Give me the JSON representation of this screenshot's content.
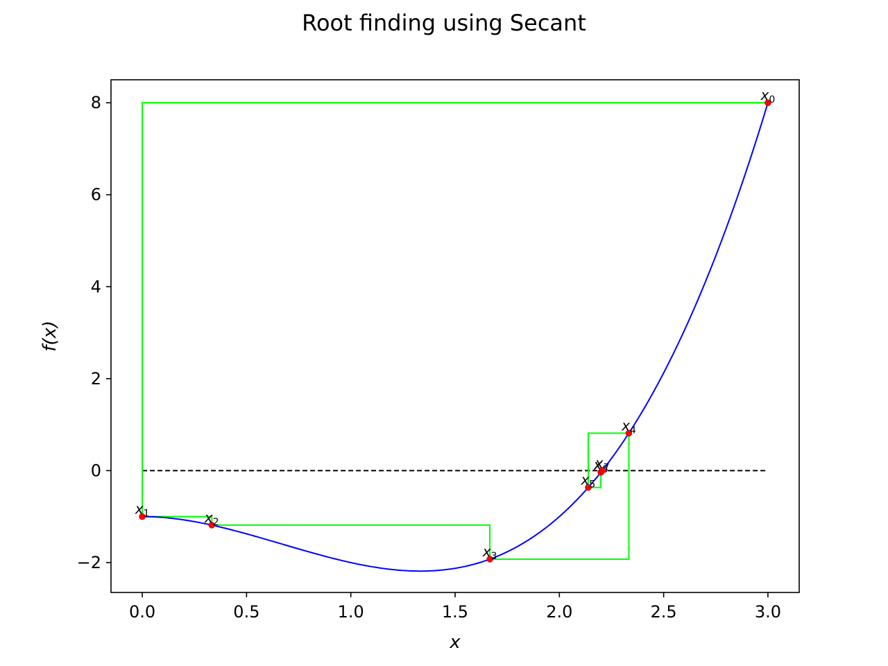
{
  "chart_data": {
    "type": "line",
    "title": "Root finding using Secant",
    "xlabel": "x",
    "ylabel": "f(x)",
    "xlim": [
      -0.15,
      3.15
    ],
    "ylim": [
      -2.65,
      8.5
    ],
    "xticks": [
      0.0,
      0.5,
      1.0,
      1.5,
      2.0,
      2.5,
      3.0
    ],
    "xtick_labels": [
      "0.0",
      "0.5",
      "1.0",
      "1.5",
      "2.0",
      "2.5",
      "3.0"
    ],
    "yticks": [
      -2,
      0,
      2,
      4,
      6,
      8
    ],
    "ytick_labels": [
      "−2",
      "0",
      "2",
      "4",
      "6",
      "8"
    ],
    "grid": false,
    "colors": {
      "curve": "#0000ff",
      "steps": "#00ff00",
      "points": "#ff0000",
      "zero_line": "#000000"
    },
    "curve": {
      "function": "f(x) = x^3 - 2x^2 - 1",
      "x_range": [
        0,
        3
      ]
    },
    "zero_line": {
      "x_range": [
        0,
        3
      ],
      "y": 0,
      "style": "dashed"
    },
    "iterates": [
      {
        "label": "x",
        "sub": "0",
        "x": 3.0,
        "y": 8.0
      },
      {
        "label": "x",
        "sub": "1",
        "x": 0.0,
        "y": -1.0
      },
      {
        "label": "x",
        "sub": "2",
        "x": 0.3333,
        "y": -1.1852
      },
      {
        "label": "x",
        "sub": "3",
        "x": 1.6667,
        "y": -1.9259
      },
      {
        "label": "x",
        "sub": "4",
        "x": 2.3333,
        "y": 0.8148
      },
      {
        "label": "x",
        "sub": "5",
        "x": 2.1385,
        "y": -0.3665
      },
      {
        "label": "x",
        "sub": "6",
        "x": 2.199,
        "y": -0.0367
      },
      {
        "label": "x",
        "sub": "7",
        "x": 2.2057,
        "y": 0.0014
      }
    ]
  }
}
